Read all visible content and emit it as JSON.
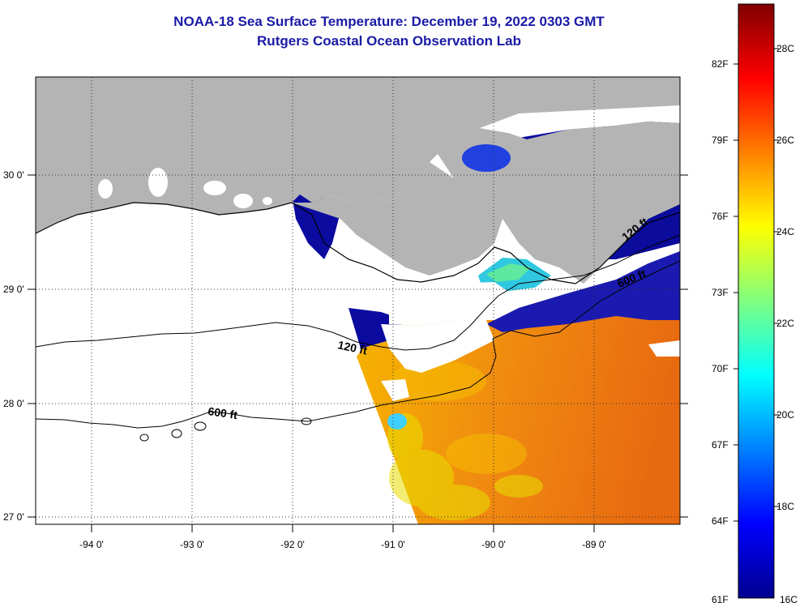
{
  "header": {
    "title": "NOAA-18 Sea Surface Temperature:  December 19, 2022 0303 GMT",
    "subtitle": "Rutgers Coastal Ocean Observation Lab"
  },
  "map": {
    "lat_labels": [
      "30 0'",
      "29 0'",
      "28 0'",
      "27 0'"
    ],
    "lon_labels": [
      "-94 0'",
      "-93 0'",
      "-92 0'",
      "-91 0'",
      "-90 0'",
      "-89 0'"
    ],
    "contours": {
      "c120_a": "120 ft",
      "c600_a": "600 ft",
      "c600_b": "600 ft",
      "c120_b": "120 ft"
    },
    "colors": {
      "land": "#b4b4b4",
      "cloud_mask": "#ffffff",
      "coastline": "#000000",
      "grid": "#333333"
    }
  },
  "colorbar": {
    "f_labels": [
      "82F",
      "79F",
      "76F",
      "73F",
      "70F",
      "67F",
      "64F",
      "61F"
    ],
    "c_labels": [
      "28C",
      "26C",
      "24C",
      "22C",
      "20C",
      "18C",
      "16C"
    ],
    "colormap": "jet",
    "range_c": [
      16,
      29
    ]
  }
}
